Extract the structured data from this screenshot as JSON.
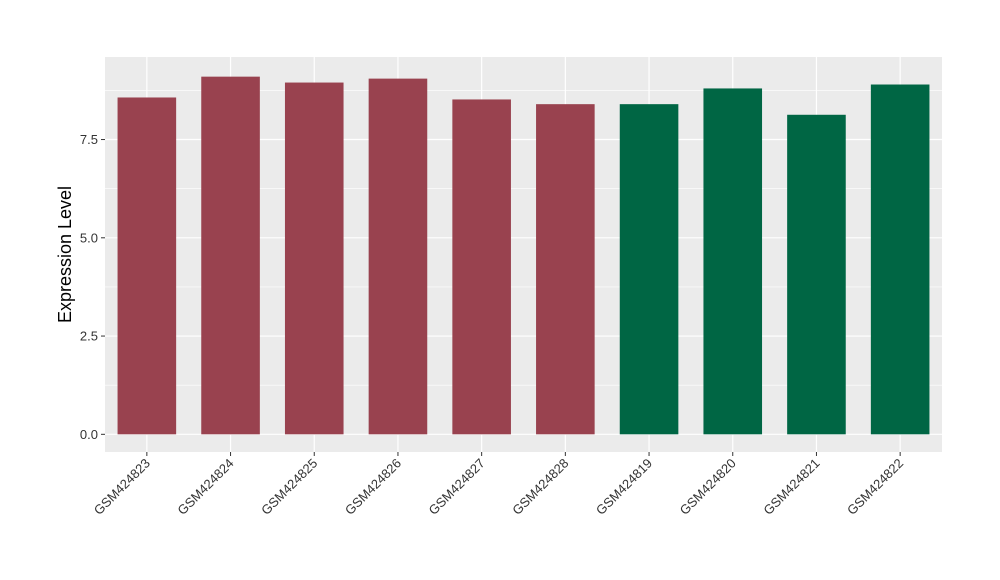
{
  "chart_data": {
    "type": "bar",
    "ylabel": "Expression Level",
    "xlabel": "",
    "categories": [
      "GSM424823",
      "GSM424824",
      "GSM424825",
      "GSM424826",
      "GSM424827",
      "GSM424828",
      "GSM424819",
      "GSM424820",
      "GSM424821",
      "GSM424822"
    ],
    "values": [
      8.57,
      9.1,
      8.95,
      9.05,
      8.52,
      8.4,
      8.4,
      8.8,
      8.13,
      8.9
    ],
    "group_colors": [
      "#99424f",
      "#99424f",
      "#99424f",
      "#99424f",
      "#99424f",
      "#99424f",
      "#006644",
      "#006644",
      "#006644",
      "#006644"
    ],
    "ylim": [
      -0.45,
      9.6
    ],
    "yticks": [
      0.0,
      2.5,
      5.0,
      7.5
    ],
    "ytick_labels": [
      "0.0",
      "2.5",
      "5.0",
      "7.5"
    ],
    "grid": true,
    "panel_background": "#ebebeb",
    "grid_color": "#ffffff"
  }
}
